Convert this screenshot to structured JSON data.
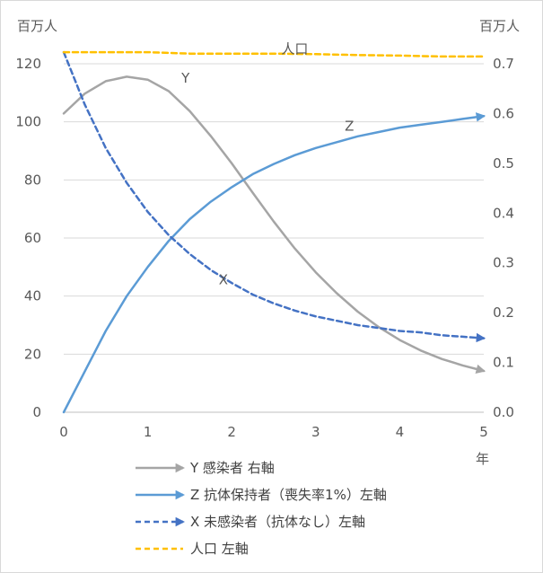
{
  "chart_data": {
    "type": "line",
    "x_unit": "年",
    "left_axis_unit": "百万人",
    "right_axis_unit": "百万人",
    "x_ticks": [
      0,
      1,
      2,
      3,
      4,
      5
    ],
    "left_ticks": [
      0,
      20,
      40,
      60,
      80,
      100,
      120
    ],
    "right_ticks": [
      "0.0",
      "0.1",
      "0.2",
      "0.3",
      "0.4",
      "0.5",
      "0.6",
      "0.7"
    ],
    "xlim": [
      0,
      5
    ],
    "ylim_left": [
      0,
      120
    ],
    "ylim_right": [
      0,
      0.7
    ],
    "grid": "horizontal",
    "annotations": [
      {
        "text": "人口",
        "x": 2.75,
        "y": 123.5,
        "axis": "left"
      },
      {
        "text": "Y",
        "x": 1.45,
        "y": 113.5,
        "axis": "left"
      },
      {
        "text": "Z",
        "x": 3.4,
        "y": 97,
        "axis": "left"
      },
      {
        "text": "X",
        "x": 1.9,
        "y": 44,
        "axis": "left"
      }
    ],
    "series": [
      {
        "name": "Y 感染者 右軸",
        "axis": "right",
        "color": "#a5a5a5",
        "dash": "solid",
        "x": [
          0,
          0.25,
          0.5,
          0.75,
          1.0,
          1.25,
          1.5,
          1.75,
          2.0,
          2.25,
          2.5,
          2.75,
          3.0,
          3.25,
          3.5,
          3.75,
          4.0,
          4.25,
          4.5,
          4.75,
          5.0
        ],
        "y": [
          0.6,
          0.64,
          0.665,
          0.674,
          0.668,
          0.645,
          0.605,
          0.555,
          0.5,
          0.441,
          0.383,
          0.329,
          0.281,
          0.239,
          0.202,
          0.171,
          0.145,
          0.124,
          0.107,
          0.094,
          0.083
        ]
      },
      {
        "name": "Z 抗体保持者（喪失率1%）左軸",
        "axis": "left",
        "color": "#5b9bd5",
        "dash": "solid",
        "x": [
          0,
          0.25,
          0.5,
          0.75,
          1.0,
          1.25,
          1.5,
          1.75,
          2.0,
          2.25,
          2.5,
          2.75,
          3.0,
          3.25,
          3.5,
          3.75,
          4.0,
          4.25,
          4.5,
          4.75,
          5.0
        ],
        "y": [
          0,
          14,
          28,
          40,
          50,
          59,
          66.5,
          72.5,
          77.5,
          82,
          85.5,
          88.5,
          91,
          93,
          95,
          96.5,
          98,
          99,
          100,
          101,
          102
        ]
      },
      {
        "name": "X 未感染者（抗体なし）左軸",
        "axis": "left",
        "color": "#4472c4",
        "dash": "dashed",
        "x": [
          0,
          0.25,
          0.5,
          0.75,
          1.0,
          1.25,
          1.5,
          1.75,
          2.0,
          2.25,
          2.5,
          2.75,
          3.0,
          3.25,
          3.5,
          3.75,
          4.0,
          4.25,
          4.5,
          4.75,
          5.0
        ],
        "y": [
          124,
          106,
          91,
          79,
          69,
          61,
          54.5,
          49,
          44.5,
          40.5,
          37.5,
          35,
          33,
          31.5,
          30,
          29,
          28,
          27.5,
          26.5,
          26,
          25.5
        ]
      },
      {
        "name": "人口 左軸",
        "axis": "left",
        "color": "#ffc000",
        "dash": "dashed",
        "x": [
          0,
          0.5,
          1.0,
          1.5,
          2.0,
          2.5,
          3.0,
          3.5,
          4.0,
          4.5,
          5.0
        ],
        "y": [
          124,
          124,
          124,
          123.5,
          123.5,
          123.5,
          123.3,
          123,
          122.8,
          122.5,
          122.5
        ]
      }
    ]
  }
}
